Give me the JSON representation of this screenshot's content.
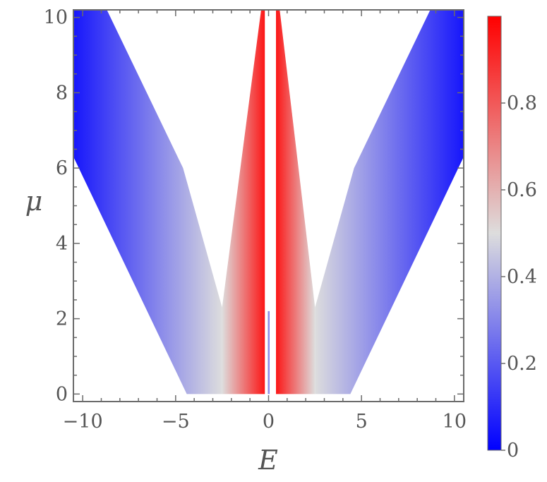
{
  "chart_data": {
    "type": "heatmap",
    "title": "",
    "xlabel": "E",
    "ylabel": "μ",
    "xlim": [
      -10.5,
      10.5
    ],
    "ylim": [
      -0.2,
      10.2
    ],
    "x_ticks": [
      -10,
      -5,
      0,
      5,
      10
    ],
    "x_tick_labels": [
      "−10",
      "−5",
      "0",
      "5",
      "10"
    ],
    "y_ticks": [
      0,
      2,
      4,
      6,
      8,
      10
    ],
    "y_tick_labels": [
      "0",
      "2",
      "4",
      "6",
      "8",
      "10"
    ],
    "colorbar": {
      "range": [
        0,
        1
      ],
      "ticks": [
        0,
        0.2,
        0.4,
        0.6,
        0.8
      ],
      "tick_labels": [
        "0",
        "0.2",
        "0.4",
        "0.6",
        "0.8"
      ],
      "colors": {
        "low": "#0000ff",
        "mid": "#dddddd",
        "high": "#ff0000"
      }
    },
    "regions": [
      {
        "name": "outer-band-left",
        "value_range": [
          0.05,
          0.5
        ],
        "polygon": [
          [
            -10.5,
            6.3
          ],
          [
            -4.4,
            0
          ],
          [
            -2.5,
            0
          ],
          [
            -2.5,
            2.3
          ],
          [
            -4.6,
            6.0
          ],
          [
            -8.7,
            10.2
          ],
          [
            -10.5,
            10.2
          ]
        ]
      },
      {
        "name": "outer-band-right",
        "value_range": [
          0.05,
          0.5
        ],
        "polygon": [
          [
            10.5,
            6.3
          ],
          [
            4.4,
            0
          ],
          [
            2.5,
            0
          ],
          [
            2.5,
            2.3
          ],
          [
            4.6,
            6.0
          ],
          [
            8.7,
            10.2
          ],
          [
            10.5,
            10.2
          ]
        ]
      },
      {
        "name": "inner-band-left",
        "value_range": [
          0.5,
          0.95
        ],
        "polygon": [
          [
            -2.5,
            0
          ],
          [
            -0.2,
            0
          ],
          [
            -0.2,
            10.2
          ],
          [
            -0.4,
            10.2
          ],
          [
            -2.5,
            2.3
          ]
        ]
      },
      {
        "name": "inner-band-right",
        "value_range": [
          0.5,
          0.95
        ],
        "polygon": [
          [
            2.5,
            0
          ],
          [
            0.4,
            0
          ],
          [
            0.4,
            10.2
          ],
          [
            0.6,
            10.2
          ],
          [
            2.5,
            2.3
          ]
        ]
      },
      {
        "name": "center-line",
        "value_range": [
          0.2,
          0.45
        ],
        "polygon": [
          [
            -0.05,
            0
          ],
          [
            0.05,
            0
          ],
          [
            0.05,
            2.2
          ],
          [
            -0.05,
            2.2
          ]
        ]
      }
    ]
  }
}
